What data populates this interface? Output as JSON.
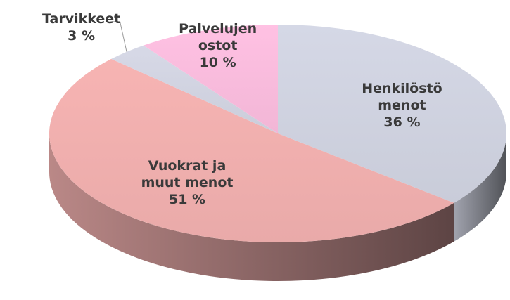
{
  "chart_data": {
    "type": "pie",
    "categories": [
      "Henkilöstö menot",
      "Vuokrat ja muut menot",
      "Tarvikkeet",
      "Palvelujen ostot"
    ],
    "values": [
      36,
      51,
      3,
      10
    ],
    "value_labels": [
      "36 %",
      "51 %",
      "3 %",
      "10 %"
    ],
    "colors": [
      "#c9ccd9",
      "#e9aaa9",
      "#cbcdda",
      "#f2b6d6"
    ]
  }
}
